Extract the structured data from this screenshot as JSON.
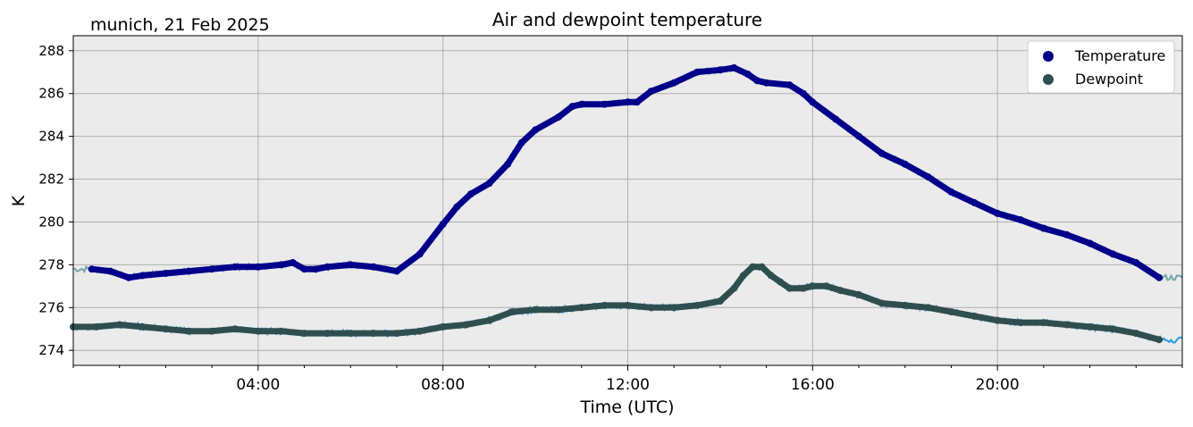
{
  "chart_data": {
    "type": "line",
    "title": "Air and dewpoint temperature",
    "subtitle": "munich, 21 Feb 2025",
    "xlabel": "Time (UTC)",
    "ylabel": "K",
    "xlim": [
      0,
      24
    ],
    "ylim": [
      273.3,
      288.7
    ],
    "x_ticks": [
      {
        "value": 4,
        "label": "04:00"
      },
      {
        "value": 8,
        "label": "08:00"
      },
      {
        "value": 12,
        "label": "12:00"
      },
      {
        "value": 16,
        "label": "16:00"
      },
      {
        "value": 20,
        "label": "20:00"
      }
    ],
    "y_ticks": [
      274,
      276,
      278,
      280,
      282,
      284,
      286,
      288
    ],
    "grid": true,
    "legend_position": "top-right",
    "legend": [
      {
        "label": "Temperature",
        "color": "#00008b"
      },
      {
        "label": "Dewpoint",
        "color": "#2f4f4f"
      }
    ],
    "colors": {
      "plot_background": "#ebebeb",
      "temperature_raw": "#6fa8a8",
      "dewpoint_raw": "#1e9be9",
      "temperature": "#00008b",
      "dewpoint": "#2f4f4f",
      "grid": "#b0b0b0"
    },
    "series": [
      {
        "name": "Temperature",
        "marker": "filled-circle",
        "x": [
          0.4,
          0.8,
          1.2,
          1.5,
          2.0,
          2.5,
          3.0,
          3.5,
          4.0,
          4.5,
          4.75,
          5.0,
          5.25,
          5.5,
          6.0,
          6.5,
          7.0,
          7.5,
          8.0,
          8.3,
          8.6,
          9.0,
          9.4,
          9.7,
          10.0,
          10.5,
          10.8,
          11.0,
          11.5,
          12.0,
          12.2,
          12.5,
          13.0,
          13.5,
          14.0,
          14.3,
          14.6,
          14.8,
          15.0,
          15.5,
          15.8,
          16.0,
          16.5,
          17.0,
          17.5,
          18.0,
          18.5,
          19.0,
          19.5,
          20.0,
          20.5,
          21.0,
          21.5,
          22.0,
          22.5,
          23.0,
          23.5
        ],
        "values": [
          277.8,
          277.7,
          277.4,
          277.5,
          277.6,
          277.7,
          277.8,
          277.9,
          277.9,
          278.0,
          278.1,
          277.8,
          277.8,
          277.9,
          278.0,
          277.9,
          277.7,
          278.5,
          279.9,
          280.7,
          281.3,
          281.8,
          282.7,
          283.7,
          284.3,
          284.9,
          285.4,
          285.5,
          285.5,
          285.6,
          285.6,
          286.1,
          286.5,
          287.0,
          287.1,
          287.2,
          286.9,
          286.6,
          286.5,
          286.4,
          286.0,
          285.6,
          284.8,
          284.0,
          283.2,
          282.7,
          282.1,
          281.4,
          280.9,
          280.4,
          280.1,
          279.7,
          279.4,
          279.0,
          278.5,
          278.1,
          277.4
        ]
      },
      {
        "name": "Dewpoint",
        "marker": "filled-circle",
        "x": [
          0.0,
          0.5,
          1.0,
          1.5,
          2.0,
          2.5,
          3.0,
          3.5,
          4.0,
          4.5,
          5.0,
          5.5,
          6.0,
          6.5,
          7.0,
          7.5,
          8.0,
          8.5,
          9.0,
          9.5,
          10.0,
          10.5,
          11.0,
          11.5,
          12.0,
          12.5,
          13.0,
          13.5,
          14.0,
          14.3,
          14.5,
          14.7,
          14.9,
          15.1,
          15.3,
          15.5,
          15.8,
          16.0,
          16.3,
          16.6,
          17.0,
          17.5,
          18.0,
          18.5,
          19.0,
          19.5,
          20.0,
          20.5,
          21.0,
          21.5,
          22.0,
          22.5,
          23.0,
          23.5
        ],
        "values": [
          275.1,
          275.1,
          275.2,
          275.1,
          275.0,
          274.9,
          274.9,
          275.0,
          274.9,
          274.9,
          274.8,
          274.8,
          274.8,
          274.8,
          274.8,
          274.9,
          275.1,
          275.2,
          275.4,
          275.8,
          275.9,
          275.9,
          276.0,
          276.1,
          276.1,
          276.0,
          276.0,
          276.1,
          276.3,
          276.9,
          277.5,
          277.9,
          277.9,
          277.5,
          277.2,
          276.9,
          276.9,
          277.0,
          277.0,
          276.8,
          276.6,
          276.2,
          276.1,
          276.0,
          275.8,
          275.6,
          275.4,
          275.3,
          275.3,
          275.2,
          275.1,
          275.0,
          274.8,
          274.5
        ]
      }
    ]
  }
}
